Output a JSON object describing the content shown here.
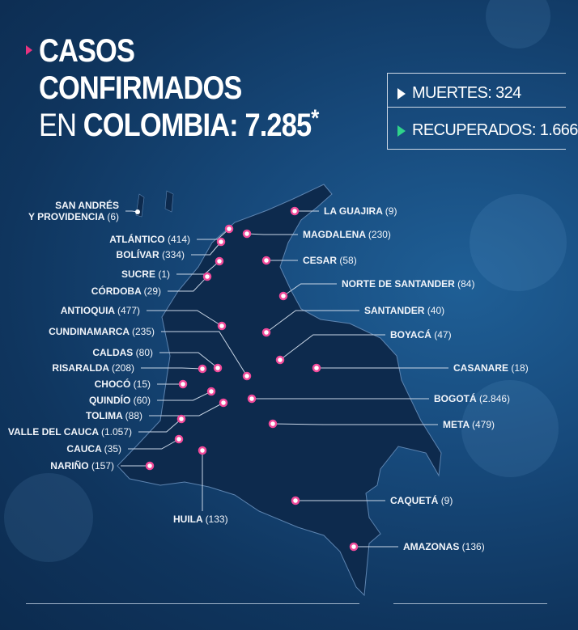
{
  "header": {
    "line1": "CASOS",
    "line2": "CONFIRMADOS",
    "line3_prefix": "EN",
    "line3_bold": "COLOMBIA: 7.285",
    "asterisk": "*"
  },
  "stats": {
    "deaths": "MUERTES: 324",
    "recovered": "RECUPERADOS: 1.666"
  },
  "colors": {
    "accent": "#e8337f",
    "recovered_arrow": "#2fd38a",
    "map_fill": "#0d2a4d",
    "dot": "#f04a9a"
  },
  "departments": [
    {
      "name": "SAN ANDRÉS",
      "name2": "Y PROVIDENCIA",
      "cases": "(6)"
    },
    {
      "name": "ATLÁNTICO",
      "cases": "(414)"
    },
    {
      "name": "BOLÍVAR",
      "cases": "(334)"
    },
    {
      "name": "SUCRE",
      "cases": "(1)"
    },
    {
      "name": "CÓRDOBA",
      "cases": "(29)"
    },
    {
      "name": "ANTIOQUIA",
      "cases": "(477)"
    },
    {
      "name": "CUNDINAMARCA",
      "cases": "(235)"
    },
    {
      "name": "CALDAS",
      "cases": "(80)"
    },
    {
      "name": "RISARALDA",
      "cases": "(208)"
    },
    {
      "name": "CHOCÓ",
      "cases": "(15)"
    },
    {
      "name": "QUINDÍO",
      "cases": "(60)"
    },
    {
      "name": "TOLIMA",
      "cases": "(88)"
    },
    {
      "name": "VALLE DEL CAUCA",
      "cases": "(1.057)"
    },
    {
      "name": "CAUCA",
      "cases": "(35)"
    },
    {
      "name": "NARIÑO",
      "cases": "(157)"
    },
    {
      "name": "HUILA",
      "cases": "(133)"
    },
    {
      "name": "LA GUAJIRA",
      "cases": "(9)"
    },
    {
      "name": "MAGDALENA",
      "cases": "(230)"
    },
    {
      "name": "CESAR",
      "cases": "(58)"
    },
    {
      "name": "NORTE DE SANTANDER",
      "cases": "(84)"
    },
    {
      "name": "SANTANDER",
      "cases": "(40)"
    },
    {
      "name": "BOYACÁ",
      "cases": "(47)"
    },
    {
      "name": "CASANARE",
      "cases": "(18)"
    },
    {
      "name": "BOGOTÁ",
      "cases": "(2.846)"
    },
    {
      "name": "META",
      "cases": "(479)"
    },
    {
      "name": "CAQUETÁ",
      "cases": "(9)"
    },
    {
      "name": "AMAZONAS",
      "cases": "(136)"
    }
  ]
}
